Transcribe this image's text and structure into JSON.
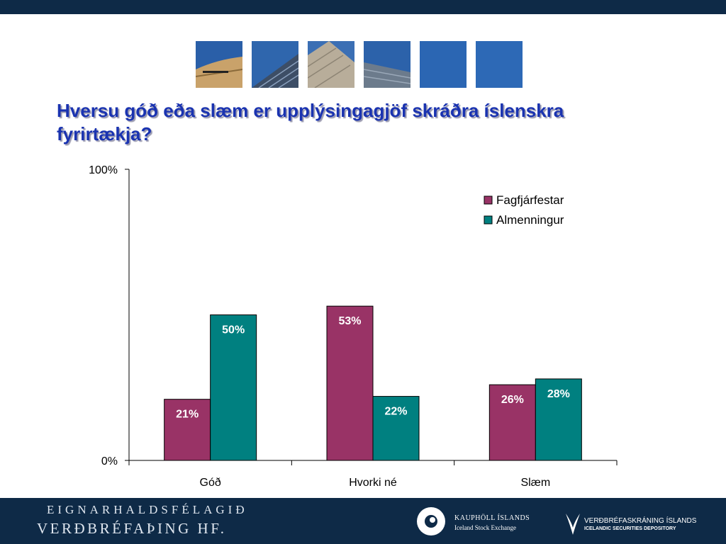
{
  "title": "Hversu góð eða slæm er upplýsingagjöf skráðra íslenskra fyrirtækja?",
  "colors": {
    "series1": "#993366",
    "series2": "#008080",
    "banner": "#0e2a47",
    "title": "#1a33b0"
  },
  "chart_data": {
    "type": "bar",
    "categories": [
      "Góð",
      "Hvorki né",
      "Slæm"
    ],
    "series": [
      {
        "name": "Fagfjárfestar",
        "values": [
          21,
          53,
          26
        ],
        "labels": [
          "21%",
          "53%",
          "26%"
        ]
      },
      {
        "name": "Almenningur",
        "values": [
          50,
          22,
          28
        ],
        "labels": [
          "50%",
          "22%",
          "28%"
        ]
      }
    ],
    "ylim": [
      0,
      100
    ],
    "yticks": [
      "0%",
      "100%"
    ],
    "legend": "top-right",
    "grid": false
  },
  "footer": {
    "company_line1": "EIGNARHALDSFÉLAGIÐ",
    "company_line2": "VERÐBRÉFAÞING HF.",
    "logo1_name": "KAUPHÖLL ÍSLANDS",
    "logo1_sub": "Iceland Stock Exchange",
    "logo2_name": "VERÐBRÉFASKRÁNING ÍSLANDS",
    "logo2_sub": "ICELANDIC SECURITIES DEPOSITORY"
  }
}
